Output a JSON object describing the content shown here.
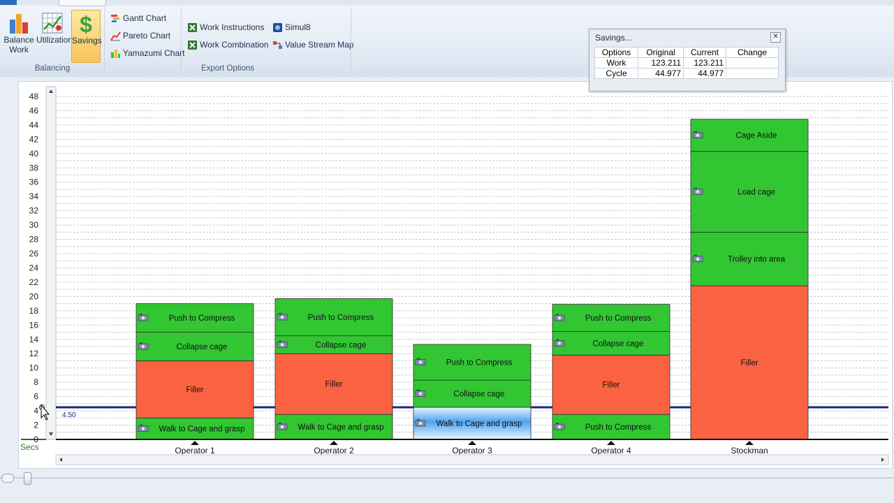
{
  "ribbon": {
    "balancing": {
      "balance_work_line1": "Balance",
      "balance_work_line2": "Work",
      "utilization": "Utilization",
      "savings": "Savings",
      "group_label": "Balancing"
    },
    "charts": {
      "gantt": "Gantt Chart",
      "pareto": "Pareto Chart",
      "yamazumi": "Yamazumi Chart"
    },
    "export": {
      "work_instructions": "Work Instructions",
      "work_combination": "Work Combination",
      "simul8": "Simul8",
      "value_stream_map": "Value Stream Map",
      "group_label": "Export Options"
    }
  },
  "savings_dialog": {
    "title": "Savings...",
    "columns": [
      "Options",
      "Original",
      "Current",
      "Change"
    ],
    "rows": [
      {
        "option": "Work",
        "original": "123.211",
        "current": "123.211",
        "change": ""
      },
      {
        "option": "Cycle",
        "original": "44.977",
        "current": "44.977",
        "change": ""
      }
    ]
  },
  "chart_data": {
    "type": "bar",
    "stacked": true,
    "ylabel": "Secs",
    "ylim": [
      0,
      48
    ],
    "yticks": [
      0,
      2,
      4,
      6,
      8,
      10,
      12,
      14,
      16,
      18,
      20,
      22,
      24,
      26,
      28,
      30,
      32,
      34,
      36,
      38,
      40,
      42,
      44,
      46,
      48
    ],
    "takt_line": {
      "value": 4.5,
      "label": "4.50"
    },
    "categories": [
      "Operator 1",
      "Operator 2",
      "Operator 3",
      "Operator 4",
      "Stockman"
    ],
    "colors": {
      "green": "#33c633",
      "red": "#fb6242",
      "selected": "#57a8f0"
    },
    "stacks": [
      {
        "operator": "Operator 1",
        "segments": [
          {
            "label": "Walk to Cage and grasp",
            "value": 3.0,
            "color": "green",
            "icon": "camera-icon"
          },
          {
            "label": "Filler",
            "value": 8.0,
            "color": "red"
          },
          {
            "label": "Collapse cage",
            "value": 4.0,
            "color": "green",
            "icon": "camera-icon"
          },
          {
            "label": "Push to Compress",
            "value": 4.0,
            "color": "green",
            "icon": "camera-icon"
          }
        ]
      },
      {
        "operator": "Operator 2",
        "segments": [
          {
            "label": "Walk to Cage and grasp",
            "value": 3.5,
            "color": "green",
            "icon": "camera-icon"
          },
          {
            "label": "Filler",
            "value": 8.5,
            "color": "red"
          },
          {
            "label": "Collapse cage",
            "value": 2.5,
            "color": "green",
            "icon": "camera-icon"
          },
          {
            "label": "Push to Compress",
            "value": 5.2,
            "color": "green",
            "icon": "camera-icon"
          }
        ]
      },
      {
        "operator": "Operator 3",
        "segments": [
          {
            "label": "Walk to Cage and grasp",
            "value": 4.5,
            "color": "selected",
            "icon": "camera-icon"
          },
          {
            "label": "Collapse cage",
            "value": 3.8,
            "color": "green",
            "icon": "camera-icon"
          },
          {
            "label": "Push to Compress",
            "value": 5.0,
            "color": "green",
            "icon": "camera-icon"
          }
        ]
      },
      {
        "operator": "Operator 4",
        "segments": [
          {
            "label": "Push to Compress",
            "value": 3.5,
            "color": "green",
            "icon": "camera-icon"
          },
          {
            "label": "Filler",
            "value": 8.3,
            "color": "red"
          },
          {
            "label": "Collapse cage",
            "value": 3.3,
            "color": "green",
            "icon": "camera-icon"
          },
          {
            "label": "Push to Compress",
            "value": 3.8,
            "color": "green",
            "icon": "camera-icon"
          }
        ]
      },
      {
        "operator": "Stockman",
        "segments": [
          {
            "label": "Filler",
            "value": 21.5,
            "color": "red"
          },
          {
            "label": "Trolley into area",
            "value": 7.5,
            "color": "green",
            "icon": "camera-icon"
          },
          {
            "label": "Load cage",
            "value": 11.3,
            "color": "green",
            "icon": "camera-icon"
          },
          {
            "label": "Cage Aside",
            "value": 4.5,
            "color": "green",
            "icon": "camera-icon"
          }
        ]
      }
    ]
  }
}
